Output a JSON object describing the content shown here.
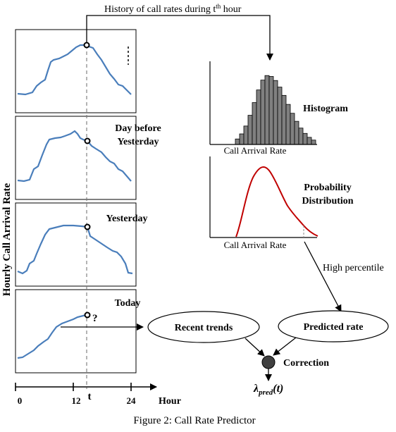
{
  "top_arrow_label": {
    "prefix": "History of call rates during t",
    "sup": "th",
    "suffix": " hour"
  },
  "y_axis_label": "Hourly Call Arrival Rate",
  "panels": [
    {
      "label_lines": [
        "",
        ""
      ],
      "has_ellipsis": true
    },
    {
      "label_lines": [
        "Day before",
        "Yesterday"
      ]
    },
    {
      "label_lines": [
        "Yesterday"
      ]
    },
    {
      "label_lines": [
        "Today"
      ],
      "marker": "?"
    }
  ],
  "x_axis": {
    "ticks": [
      "0",
      "12",
      "24"
    ],
    "marker": "t",
    "label": "Hour"
  },
  "histogram": {
    "title": "Histogram",
    "xlabel": "Call Arrival Rate"
  },
  "distribution": {
    "title_lines": [
      "Probability",
      "Distribution"
    ],
    "xlabel": "Call Arrival Rate",
    "color": "#c00000"
  },
  "edge_labels": {
    "high_percentile": "High percentile"
  },
  "nodes": {
    "recent_trends": "Recent trends",
    "predicted_rate": "Predicted rate",
    "correction": "Correction",
    "output_symbol": "λ",
    "output_sub": "pred",
    "output_arg": "(t)"
  },
  "caption": "Figure 2: Call Rate Predictor",
  "colors": {
    "curve": "#4a7ebb",
    "dist": "#c00000",
    "bar": "#808080",
    "node": "#404040"
  }
}
